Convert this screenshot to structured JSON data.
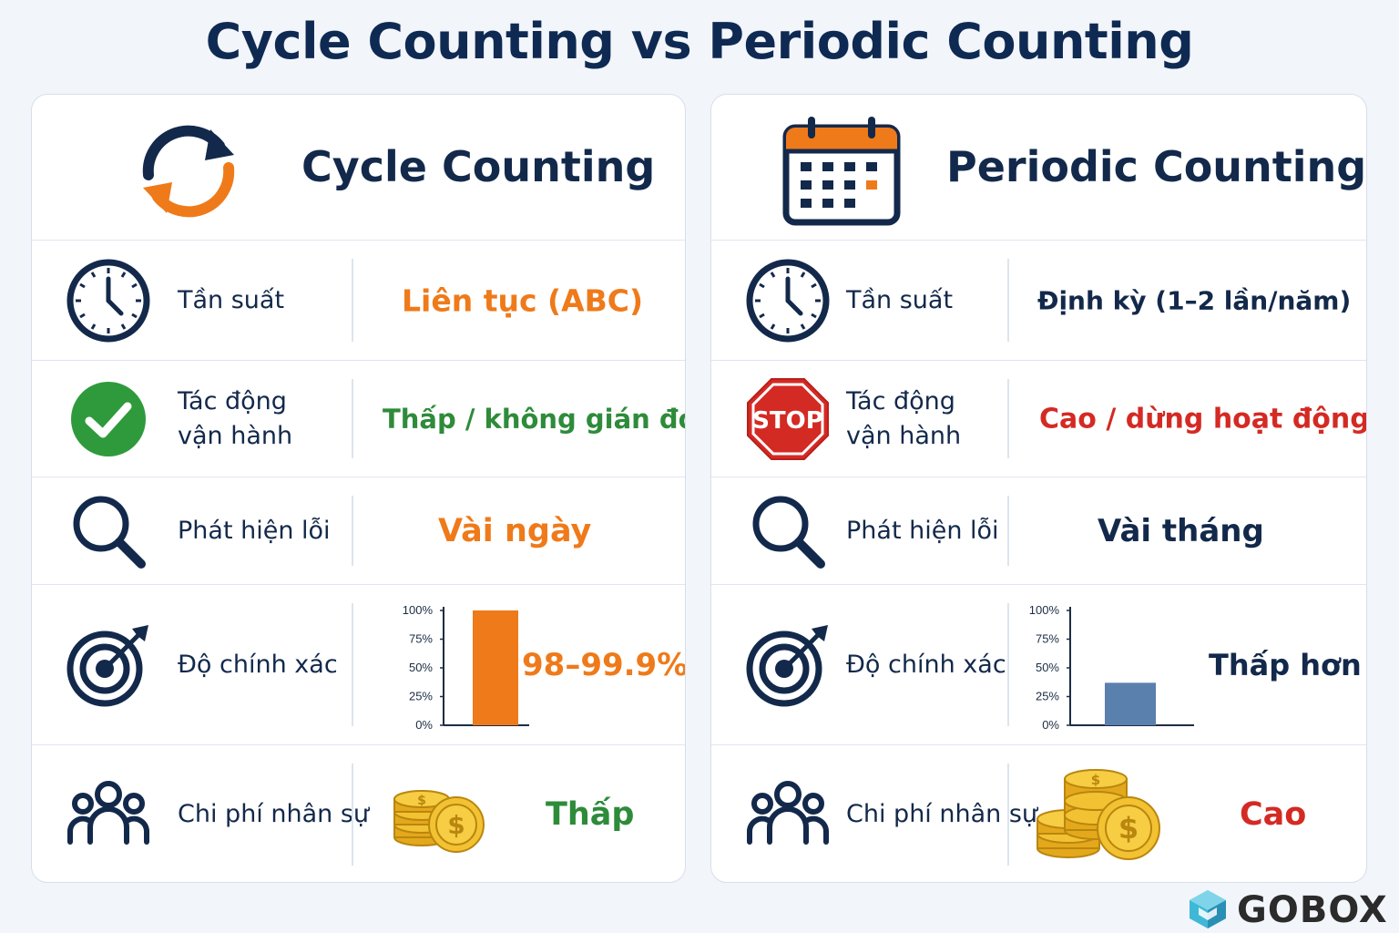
{
  "title": "Cycle Counting vs Periodic Counting",
  "colors": {
    "navy": "#13294b",
    "orange": "#ef7a1a",
    "green": "#2e8b3a",
    "red": "#d42a24",
    "steel_blue": "#5a80ad"
  },
  "left": {
    "header": {
      "title": "Cycle Counting",
      "icon": "cycle-arrows-icon"
    },
    "rows": [
      {
        "icon": "clock-icon",
        "label": "Tần suất",
        "value": "Liên tục (ABC)",
        "value_color": "orange"
      },
      {
        "icon": "check-circle-icon",
        "label_line1": "Tác động",
        "label_line2": "vận hành",
        "value": "Thấp / không gián đoạn",
        "value_color": "green"
      },
      {
        "icon": "magnifier-icon",
        "label": "Phát hiện lỗi",
        "value": "Vài ngày",
        "value_color": "orange"
      },
      {
        "icon": "target-icon",
        "label": "Độ chính xác",
        "value": "98–99.9%",
        "value_color": "orange"
      },
      {
        "icon": "people-icon",
        "label": "Chi phí nhân sự",
        "value": "Thấp",
        "value_color": "green",
        "coins": "coins-small-icon"
      }
    ]
  },
  "right": {
    "header": {
      "title": "Periodic Counting",
      "icon": "calendar-icon"
    },
    "rows": [
      {
        "icon": "clock-icon",
        "label": "Tần suất",
        "value": "Định kỳ (1–2 lần/năm)",
        "value_color": "navy"
      },
      {
        "icon": "stop-sign-icon",
        "icon_text": "STOP",
        "label_line1": "Tác động",
        "label_line2": "vận hành",
        "value": "Cao / dừng hoạt động",
        "value_color": "red"
      },
      {
        "icon": "magnifier-icon",
        "label": "Phát hiện lỗi",
        "value": "Vài tháng",
        "value_color": "navy"
      },
      {
        "icon": "target-icon",
        "label": "Độ chính xác",
        "value": "Thấp hơn",
        "value_color": "navy"
      },
      {
        "icon": "people-icon",
        "label": "Chi phí nhân sự",
        "value": "Cao",
        "value_color": "red",
        "coins": "coins-large-icon"
      }
    ]
  },
  "chart_data": [
    {
      "type": "bar",
      "categories": [
        ""
      ],
      "values": [
        100
      ],
      "yticks": [
        "0%",
        "25%",
        "50%",
        "75%",
        "100%"
      ],
      "ylim": [
        0,
        100
      ],
      "bar_color": "#ef7a1a",
      "grid": false
    },
    {
      "type": "bar",
      "categories": [
        ""
      ],
      "values": [
        37
      ],
      "yticks": [
        "0%",
        "25%",
        "50%",
        "75%",
        "100%"
      ],
      "ylim": [
        0,
        100
      ],
      "bar_color": "#5a80ad",
      "grid": false
    }
  ],
  "brand": {
    "name": "GOBOX",
    "icon": "gobox-logo-icon"
  }
}
